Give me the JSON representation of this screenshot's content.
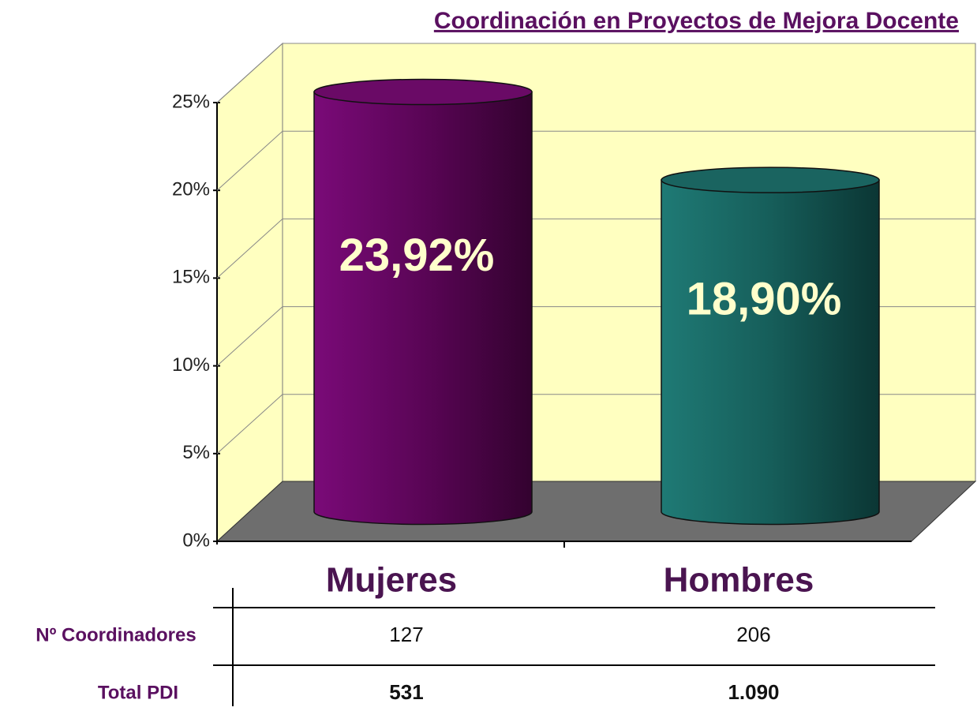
{
  "chart_data": {
    "type": "bar",
    "title": "Coordinación en Proyectos de Mejora Docente",
    "categories": [
      "Mujeres",
      "Hombres"
    ],
    "values": [
      23.92,
      18.9
    ],
    "value_labels": [
      "23,92%",
      "18,90%"
    ],
    "colors": [
      "#6a0a66",
      "#1a6460"
    ],
    "ylim": [
      0,
      25
    ],
    "yticks": [
      {
        "value": 0,
        "label": "0%"
      },
      {
        "value": 5,
        "label": "5%"
      },
      {
        "value": 10,
        "label": "10%"
      },
      {
        "value": 15,
        "label": "15%"
      },
      {
        "value": 20,
        "label": "20%"
      },
      {
        "value": 25,
        "label": "25%"
      }
    ],
    "grid": true
  },
  "table": {
    "rows": [
      {
        "label": "Nº Coordinadores",
        "cells": [
          "127",
          "206"
        ]
      },
      {
        "label": "Total PDI",
        "cells": [
          "531",
          "1.090"
        ]
      }
    ]
  }
}
